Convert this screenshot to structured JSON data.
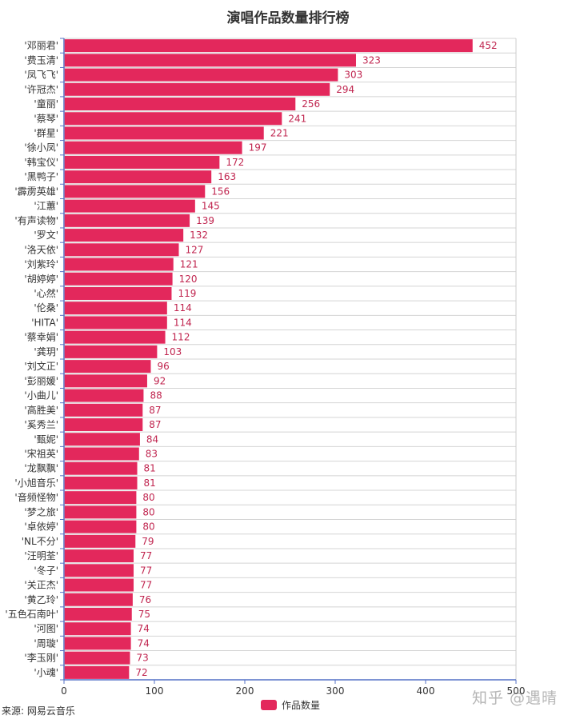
{
  "source": "来源: 网易云音乐",
  "watermark": "知乎 @遇晴",
  "colors": {
    "bar": "#e3285c",
    "label": "#c0254f",
    "axis": "#5470c6",
    "grid": "#d4d4d4",
    "border": "#cccccc",
    "text": "#333333"
  },
  "chart_data": {
    "type": "bar",
    "orientation": "horizontal",
    "title": "演唱作品数量排行榜",
    "xlabel": "",
    "ylabel": "",
    "xlim": [
      0,
      500
    ],
    "xticks": [
      0,
      100,
      200,
      300,
      400,
      500
    ],
    "grid": true,
    "legend": "bottom-center",
    "series": [
      {
        "name": "作品数量",
        "color": "#e3285c",
        "values": [
          452,
          323,
          303,
          294,
          256,
          241,
          221,
          197,
          172,
          163,
          156,
          145,
          139,
          132,
          127,
          121,
          120,
          119,
          114,
          114,
          112,
          103,
          96,
          92,
          88,
          87,
          87,
          84,
          83,
          81,
          81,
          80,
          80,
          80,
          79,
          77,
          77,
          77,
          76,
          75,
          74,
          74,
          73,
          72
        ]
      }
    ],
    "categories": [
      "'邓丽君'",
      "'费玉清'",
      "'凤飞飞'",
      "'许冠杰'",
      "'童丽'",
      "'蔡琴'",
      "'群星'",
      "'徐小凤'",
      "'韩宝仪'",
      "'黑鸭子'",
      "'霹雳英雄'",
      "'江蕙'",
      "'有声读物'",
      "'罗文'",
      "'洛天依'",
      "'刘紫玲'",
      "'胡婷婷'",
      "'心然'",
      "'伦桑'",
      "'HITA'",
      "'蔡幸娟'",
      "'龚玥'",
      "'刘文正'",
      "'彭丽媛'",
      "'小曲儿'",
      "'高胜美'",
      "'奚秀兰'",
      "'甄妮'",
      "'宋祖英'",
      "'龙飘飘'",
      "'小旭音乐'",
      "'音频怪物'",
      "'梦之旅'",
      "'卓依婷'",
      "'NL不分'",
      "'汪明荃'",
      "'冬子'",
      "'关正杰'",
      "'黄乙玲'",
      "'五色石南叶'",
      "'河图'",
      "'周璇'",
      "'李玉刚'",
      "'小魂'"
    ]
  }
}
